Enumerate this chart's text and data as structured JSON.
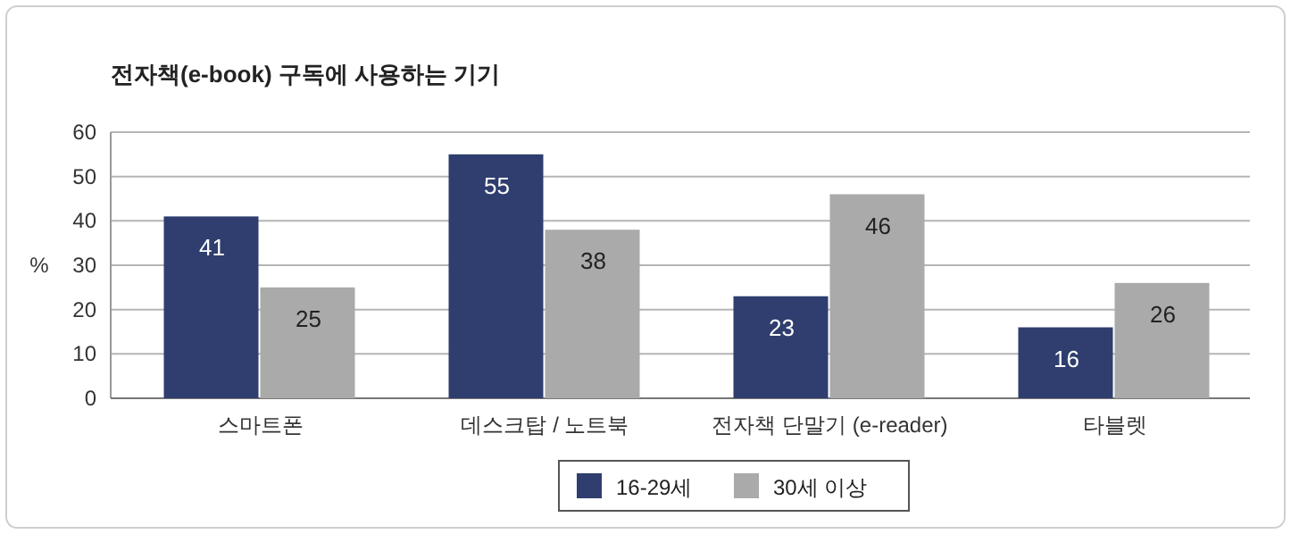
{
  "chart_data": {
    "type": "bar",
    "title": "전자책(e-book) 구독에 사용하는 기기",
    "ylabel": "%",
    "categories": [
      "스마트폰",
      "데스크탑 / 노트북",
      "전자책 단말기 (e-reader)",
      "타블렛"
    ],
    "series": [
      {
        "name": "16-29세",
        "color": "#2f3e6e",
        "values": [
          41,
          55,
          23,
          16
        ]
      },
      {
        "name": "30세 이상",
        "color": "#aaaaaa",
        "values": [
          25,
          38,
          46,
          26
        ]
      }
    ],
    "ylim": [
      0,
      60
    ],
    "yticks": [
      0,
      10,
      20,
      30,
      40,
      50,
      60
    ],
    "grid": "y",
    "legend": "bottom",
    "data_labels": true
  }
}
